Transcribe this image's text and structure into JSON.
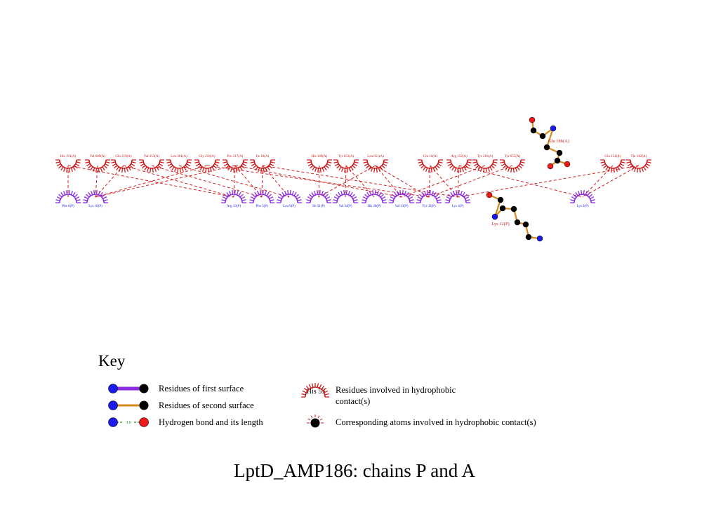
{
  "title": "LptD_AMP186: chains P and A",
  "colors": {
    "chainA": "#cc1a1a",
    "chainP": "#8a2be2",
    "contact": "#d42020",
    "first_surface": "#8a2be2",
    "second_surface": "#d68a1a",
    "hbond": "#1a8a1a",
    "carbon": "#000000",
    "nitrogen": "#1a1aee",
    "oxygen": "#ee1a1a"
  },
  "residues_A": [
    {
      "id": "a1",
      "label": "His 191(A)"
    },
    {
      "id": "a2",
      "label": "Val 609(A)"
    },
    {
      "id": "a3",
      "label": "Gln 219(A)"
    },
    {
      "id": "a4",
      "label": "Val 353(A)"
    },
    {
      "id": "a5",
      "label": "Leu 381(A)"
    },
    {
      "id": "a6",
      "label": "Gly 218(A)"
    },
    {
      "id": "a7",
      "label": "Pro 217(A)"
    },
    {
      "id": "a8",
      "label": "Ile 18(A)"
    },
    {
      "id": "a9",
      "label": "His 189(A)"
    },
    {
      "id": "a10",
      "label": "Tyr 653(A)"
    },
    {
      "id": "a11",
      "label": "Leu 651(A)"
    },
    {
      "id": "a12",
      "label": "Glu 16(A)"
    },
    {
      "id": "a13",
      "label": "Arg 152(A)"
    },
    {
      "id": "a14",
      "label": "Tyr 216(A)"
    },
    {
      "id": "a15",
      "label": "Tyr 655(A)"
    },
    {
      "id": "a16",
      "label": "Glu 154(A)"
    },
    {
      "id": "a17",
      "label": "Thr 182(A)"
    }
  ],
  "residues_P": [
    {
      "id": "p1",
      "label": "Phe 6(P)"
    },
    {
      "id": "p2",
      "label": "Lys 10(P)"
    },
    {
      "id": "p3",
      "label": "Arg 33(P)"
    },
    {
      "id": "p4",
      "label": "Phe 5(P)"
    },
    {
      "id": "p5",
      "label": "Leu 9(P)"
    },
    {
      "id": "p6",
      "label": "Ile 31(P)"
    },
    {
      "id": "p7",
      "label": "Val 34(P)"
    },
    {
      "id": "p8",
      "label": "His 28(P)"
    },
    {
      "id": "p9",
      "label": "Val 13(P)"
    },
    {
      "id": "p10",
      "label": "Tyr 32(P)"
    },
    {
      "id": "p11",
      "label": "Lys 1(P)"
    },
    {
      "id": "p12",
      "label": "Lys 2(P)"
    }
  ],
  "contacts": [
    [
      "a1",
      "p1"
    ],
    [
      "a1",
      "p3"
    ],
    [
      "a2",
      "p2"
    ],
    [
      "a3",
      "p2"
    ],
    [
      "a4",
      "p4"
    ],
    [
      "a5",
      "p5"
    ],
    [
      "a6",
      "p2"
    ],
    [
      "a6",
      "p10"
    ],
    [
      "a7",
      "p2"
    ],
    [
      "a7",
      "p3"
    ],
    [
      "a7",
      "p4"
    ],
    [
      "a7",
      "p9"
    ],
    [
      "a8",
      "p4"
    ],
    [
      "a8",
      "p5"
    ],
    [
      "a8",
      "p11"
    ],
    [
      "a9",
      "p6"
    ],
    [
      "a10",
      "p7"
    ],
    [
      "a10",
      "p8"
    ],
    [
      "a11",
      "p6"
    ],
    [
      "a11",
      "p9"
    ],
    [
      "a12",
      "p10"
    ],
    [
      "a12",
      "p11"
    ],
    [
      "a13",
      "p11"
    ],
    [
      "a13",
      "p12"
    ],
    [
      "a14",
      "p9"
    ],
    [
      "a15",
      "p10"
    ],
    [
      "a16",
      "p12"
    ],
    [
      "a17",
      "p12"
    ],
    [
      "a17",
      "p11"
    ],
    [
      "a3",
      "p3"
    ],
    [
      "a11",
      "p10"
    ]
  ],
  "ligands": [
    {
      "label": "Glu 186(A)",
      "bond_color_key": "second_surface"
    },
    {
      "label": "Lys 12(P)",
      "bond_color_key": "second_surface"
    }
  ],
  "key": {
    "title": "Key",
    "items": [
      {
        "label": "Residues of first surface"
      },
      {
        "label": "Residues of second surface"
      },
      {
        "label": "Hydrogen bond and its length",
        "hbond_length": "3.0"
      },
      {
        "label_line1": "Residues involved in hydrophobic",
        "label_line2": "contact(s)",
        "example_label": "His 53"
      },
      {
        "label": "Corresponding atoms involved in hydrophobic contact(s)"
      }
    ]
  }
}
